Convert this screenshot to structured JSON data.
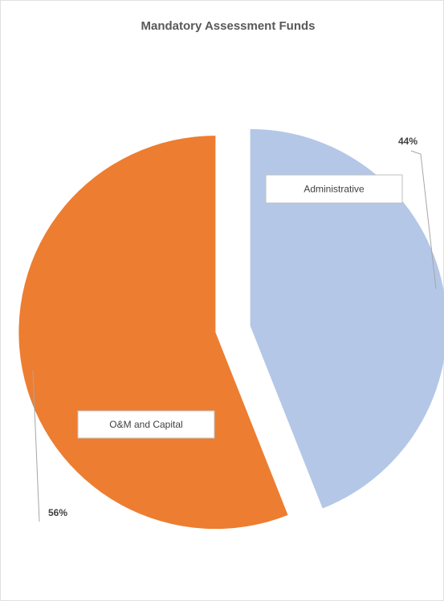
{
  "chart_data": {
    "type": "pie",
    "title": "Mandatory Assessment Funds",
    "categories": [
      "Administrative",
      "O&M and Capital"
    ],
    "values": [
      44,
      56
    ],
    "value_labels": [
      "44%",
      "56%"
    ],
    "colors": [
      "#b4c7e7",
      "#ed7d31"
    ]
  }
}
